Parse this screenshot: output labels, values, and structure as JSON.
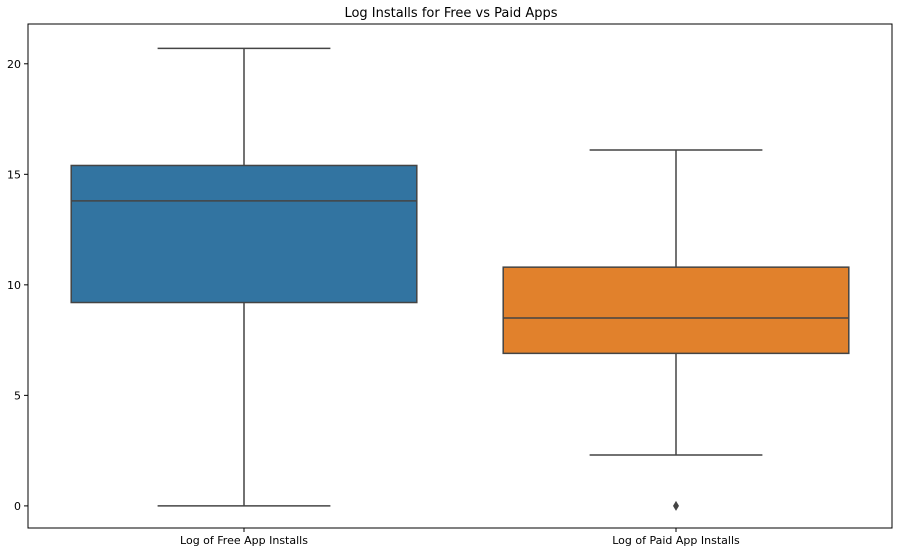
{
  "chart_data": {
    "type": "box",
    "title": "Log Installs for Free vs Paid Apps",
    "xlabel": "",
    "ylabel": "",
    "ylim": [
      -1,
      21.8
    ],
    "yticks": [
      0,
      5,
      10,
      15,
      20
    ],
    "grid": false,
    "categories": [
      "Log of Free App Installs",
      "Log of Paid App Installs"
    ],
    "boxes": [
      {
        "category": "Log of Free App Installs",
        "whisker_low": 0,
        "q1": 9.2,
        "median": 13.8,
        "q3": 15.4,
        "whisker_high": 20.7,
        "outliers": [],
        "color": "#3274a1"
      },
      {
        "category": "Log of Paid App Installs",
        "whisker_low": 2.3,
        "q1": 6.9,
        "median": 8.5,
        "q3": 10.8,
        "whisker_high": 16.1,
        "outliers": [
          0
        ],
        "color": "#e1812c"
      }
    ],
    "line_color": "#444444"
  }
}
